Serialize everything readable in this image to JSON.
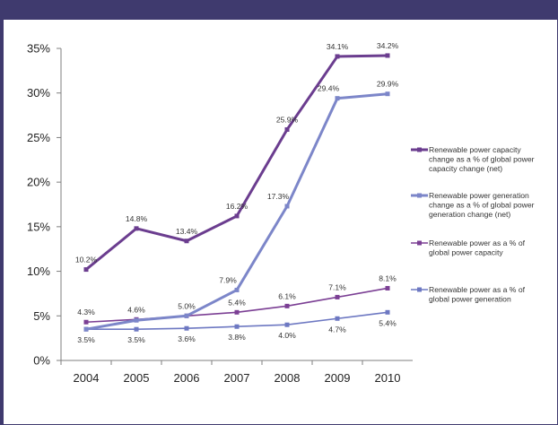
{
  "chart_data": {
    "type": "line",
    "categories": [
      "2004",
      "2005",
      "2006",
      "2007",
      "2008",
      "2009",
      "2010"
    ],
    "ylim": [
      0,
      35
    ],
    "yticks": [
      "0%",
      "5%",
      "10%",
      "15%",
      "20%",
      "25%",
      "30%",
      "35%"
    ],
    "grid": false,
    "legend_position": "right",
    "series": [
      {
        "name": "Renewable power capacity change as a % of global power capacity change (net)",
        "legend_lines": [
          "Renewable power capacity",
          "change as a % of global power",
          "capacity change (net)"
        ],
        "values": [
          10.2,
          14.8,
          13.4,
          16.2,
          25.9,
          34.1,
          34.2
        ],
        "labels": [
          "10.2%",
          "14.8%",
          "13.4%",
          "16.2%",
          "25.9%",
          "34.1%",
          "34.2%"
        ],
        "color": "#6b3d8f",
        "thick": true
      },
      {
        "name": "Renewable power generation change as a % of global power generation change (net)",
        "legend_lines": [
          "Renewable power generation",
          "change as a % of global power",
          "generation change (net)"
        ],
        "values": [
          3.5,
          4.5,
          5.0,
          7.9,
          17.3,
          29.4,
          29.9
        ],
        "labels": [
          "",
          "",
          "",
          "7.9%",
          "17.3%",
          "29.4%",
          "29.9%"
        ],
        "color": "#7c86c9",
        "thick": true
      },
      {
        "name": "Renewable power as a % of global power capacity",
        "legend_lines": [
          "Renewable power as a % of",
          "global power capacity"
        ],
        "values": [
          4.3,
          4.6,
          5.0,
          5.4,
          6.1,
          7.1,
          8.1
        ],
        "labels": [
          "4.3%",
          "4.6%",
          "5.0%",
          "5.4%",
          "6.1%",
          "7.1%",
          "8.1%"
        ],
        "color": "#7b3f94",
        "thick": false
      },
      {
        "name": "Renewable power as a % of global power generation",
        "legend_lines": [
          "Renewable power as a % of",
          "global power generation"
        ],
        "values": [
          3.5,
          3.5,
          3.6,
          3.8,
          4.0,
          4.7,
          5.4
        ],
        "labels": [
          "3.5%",
          "3.5%",
          "3.6%",
          "3.8%",
          "4.0%",
          "4.7%",
          "5.4%"
        ],
        "color": "#6d78c2",
        "thick": false
      }
    ]
  }
}
